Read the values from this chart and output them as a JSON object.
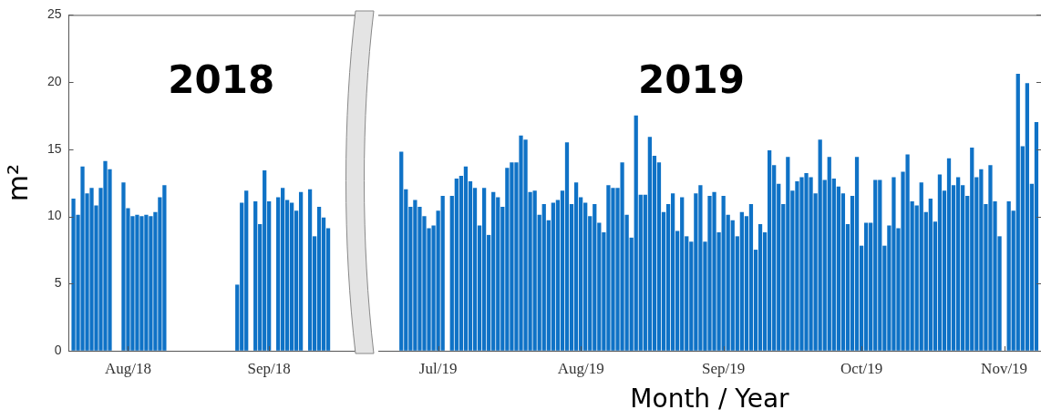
{
  "chart_data": [
    {
      "type": "bar",
      "title": "2018",
      "ylabel": "m²",
      "color": "#0f72c6",
      "grid": false,
      "x": [
        "2018-07-20",
        "2018-07-21",
        "2018-07-22",
        "2018-07-23",
        "2018-07-24",
        "2018-07-25",
        "2018-07-26",
        "2018-07-27",
        "2018-07-28",
        "2018-07-31",
        "2018-08-01",
        "2018-08-02",
        "2018-08-03",
        "2018-08-04",
        "2018-08-05",
        "2018-08-06",
        "2018-08-07",
        "2018-08-08",
        "2018-08-09",
        "2018-08-25",
        "2018-08-26",
        "2018-08-27",
        "2018-08-29",
        "2018-08-30",
        "2018-08-31",
        "2018-09-01",
        "2018-09-03",
        "2018-09-04",
        "2018-09-05",
        "2018-09-06",
        "2018-09-07",
        "2018-09-08",
        "2018-09-10",
        "2018-09-11",
        "2018-09-12",
        "2018-09-13",
        "2018-09-14"
      ],
      "values": [
        11.3,
        10.1,
        13.7,
        11.7,
        12.1,
        10.8,
        12.1,
        14.1,
        13.5,
        12.5,
        10.6,
        10.0,
        10.1,
        10.0,
        10.1,
        10.0,
        10.3,
        11.4,
        12.3,
        4.9,
        11.0,
        11.9,
        11.1,
        9.4,
        13.4,
        11.1,
        11.4,
        12.1,
        11.2,
        11.0,
        10.4,
        11.8,
        12.0,
        8.5,
        10.7,
        9.9,
        9.1
      ],
      "xlim": [
        "2018-07-19",
        "2018-09-20"
      ],
      "xticks": [
        {
          "value": "2018-08-01",
          "label": "Aug/18"
        },
        {
          "value": "2018-09-01",
          "label": "Sep/18"
        }
      ],
      "ylim": [
        0,
        25
      ],
      "yticks": [
        0,
        5,
        10,
        15,
        20,
        25
      ]
    },
    {
      "type": "bar",
      "title": "2019",
      "xlabel": "Month / Year",
      "color": "#0f72c6",
      "grid": false,
      "tick_labels": "x",
      "x": [
        "2019-06-23",
        "2019-06-24",
        "2019-06-25",
        "2019-06-26",
        "2019-06-27",
        "2019-06-28",
        "2019-06-29",
        "2019-06-30",
        "2019-07-01",
        "2019-07-02",
        "2019-07-04",
        "2019-07-05",
        "2019-07-06",
        "2019-07-07",
        "2019-07-08",
        "2019-07-09",
        "2019-07-10",
        "2019-07-11",
        "2019-07-12",
        "2019-07-13",
        "2019-07-14",
        "2019-07-15",
        "2019-07-16",
        "2019-07-17",
        "2019-07-18",
        "2019-07-19",
        "2019-07-20",
        "2019-07-21",
        "2019-07-22",
        "2019-07-23",
        "2019-07-24",
        "2019-07-25",
        "2019-07-26",
        "2019-07-27",
        "2019-07-28",
        "2019-07-29",
        "2019-07-30",
        "2019-07-31",
        "2019-08-01",
        "2019-08-02",
        "2019-08-03",
        "2019-08-04",
        "2019-08-05",
        "2019-08-06",
        "2019-08-07",
        "2019-08-08",
        "2019-08-09",
        "2019-08-10",
        "2019-08-11",
        "2019-08-12",
        "2019-08-13",
        "2019-08-14",
        "2019-08-15",
        "2019-08-16",
        "2019-08-17",
        "2019-08-18",
        "2019-08-19",
        "2019-08-20",
        "2019-08-21",
        "2019-08-22",
        "2019-08-23",
        "2019-08-24",
        "2019-08-25",
        "2019-08-26",
        "2019-08-27",
        "2019-08-28",
        "2019-08-29",
        "2019-08-30",
        "2019-08-31",
        "2019-09-01",
        "2019-09-02",
        "2019-09-03",
        "2019-09-04",
        "2019-09-05",
        "2019-09-06",
        "2019-09-07",
        "2019-09-08",
        "2019-09-09",
        "2019-09-10",
        "2019-09-11",
        "2019-09-12",
        "2019-09-13",
        "2019-09-14",
        "2019-09-15",
        "2019-09-16",
        "2019-09-17",
        "2019-09-18",
        "2019-09-19",
        "2019-09-20",
        "2019-09-21",
        "2019-09-22",
        "2019-09-23",
        "2019-09-24",
        "2019-09-25",
        "2019-09-26",
        "2019-09-27",
        "2019-09-28",
        "2019-09-29",
        "2019-09-30",
        "2019-10-01",
        "2019-10-02",
        "2019-10-03",
        "2019-10-04",
        "2019-10-05",
        "2019-10-06",
        "2019-10-07",
        "2019-10-08",
        "2019-10-09",
        "2019-10-10",
        "2019-10-11",
        "2019-10-12",
        "2019-10-13",
        "2019-10-14",
        "2019-10-15",
        "2019-10-16",
        "2019-10-17",
        "2019-10-18",
        "2019-10-19",
        "2019-10-20",
        "2019-10-21",
        "2019-10-22",
        "2019-10-23",
        "2019-10-24",
        "2019-10-25",
        "2019-10-26",
        "2019-10-27",
        "2019-10-28",
        "2019-10-29",
        "2019-10-30",
        "2019-10-31",
        "2019-11-02",
        "2019-11-03",
        "2019-11-04",
        "2019-11-05",
        "2019-11-06",
        "2019-11-07",
        "2019-11-08"
      ],
      "values": [
        14.8,
        12.0,
        10.7,
        11.2,
        10.7,
        10.0,
        9.1,
        9.3,
        10.4,
        11.5,
        11.5,
        12.8,
        13.0,
        13.7,
        12.6,
        12.1,
        9.3,
        12.1,
        8.6,
        11.8,
        11.4,
        10.7,
        13.6,
        14.0,
        14.0,
        16.0,
        15.7,
        11.8,
        11.9,
        10.1,
        10.9,
        9.7,
        11.0,
        11.2,
        11.9,
        15.5,
        10.9,
        12.5,
        11.4,
        11.0,
        10.0,
        10.9,
        9.5,
        8.8,
        12.3,
        12.1,
        12.1,
        14.0,
        10.1,
        8.4,
        17.5,
        11.6,
        11.6,
        15.9,
        14.5,
        14.0,
        10.3,
        10.9,
        11.7,
        8.9,
        11.4,
        8.5,
        8.1,
        11.7,
        12.3,
        8.1,
        11.5,
        11.8,
        8.8,
        11.5,
        10.1,
        9.7,
        8.5,
        10.3,
        10.0,
        10.9,
        7.5,
        9.4,
        8.8,
        14.9,
        13.8,
        12.4,
        10.9,
        14.4,
        11.9,
        12.6,
        12.9,
        13.2,
        12.9,
        11.7,
        15.7,
        12.7,
        14.4,
        12.8,
        12.2,
        11.7,
        9.4,
        11.5,
        14.4,
        7.8,
        9.5,
        9.5,
        12.7,
        12.7,
        7.8,
        9.3,
        12.9,
        9.1,
        13.3,
        14.6,
        11.1,
        10.8,
        12.5,
        10.3,
        11.3,
        9.6,
        13.1,
        11.9,
        14.3,
        12.3,
        12.9,
        12.3,
        11.5,
        15.1,
        12.9,
        13.5,
        10.9,
        13.8,
        11.1,
        8.5,
        11.1,
        10.4,
        20.6,
        15.2,
        19.9,
        12.4,
        17.0
      ],
      "xlim": [
        "2019-06-18",
        "2019-11-09"
      ],
      "xticks": [
        {
          "value": "2019-07-01",
          "label": "Jul/19"
        },
        {
          "value": "2019-08-01",
          "label": "Aug/19"
        },
        {
          "value": "2019-09-01",
          "label": "Sep/19"
        },
        {
          "value": "2019-10-01",
          "label": "Oct/19"
        },
        {
          "value": "2019-11-01",
          "label": "Nov/19"
        }
      ],
      "ylim": [
        0,
        25
      ],
      "yticks": [
        0,
        5,
        10,
        15,
        20,
        25
      ]
    }
  ]
}
